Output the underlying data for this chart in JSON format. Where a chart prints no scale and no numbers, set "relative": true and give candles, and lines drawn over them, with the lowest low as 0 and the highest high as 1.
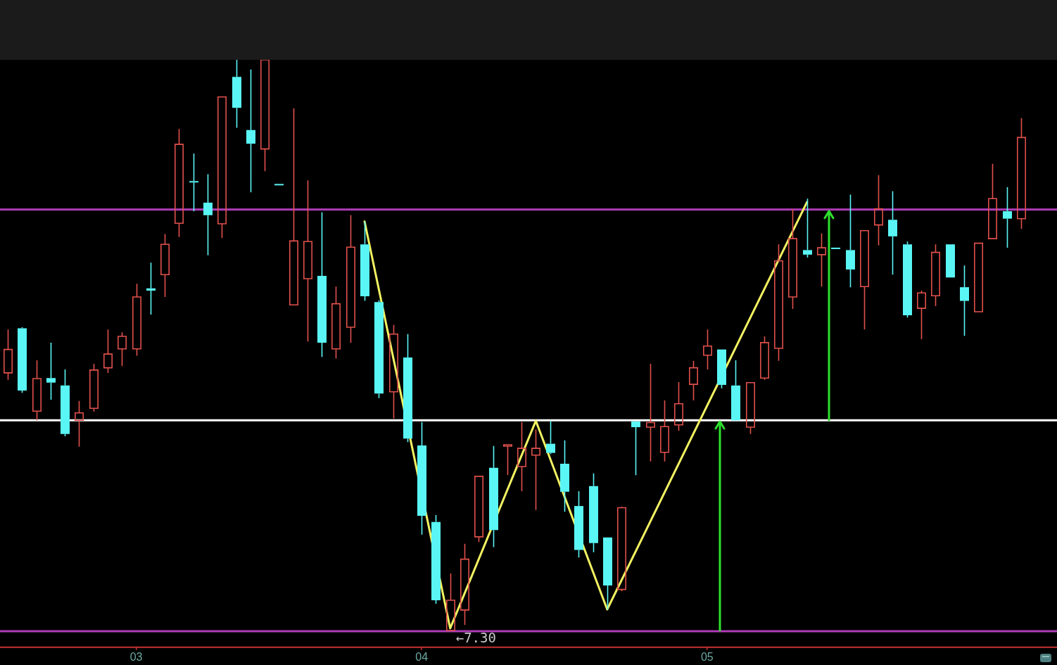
{
  "chart_data": {
    "type": "candlestick",
    "relative": true,
    "categories": [
      null,
      null,
      null,
      null,
      null,
      null,
      null,
      null,
      null,
      "03",
      null,
      null,
      null,
      null,
      null,
      null,
      null,
      null,
      null,
      null,
      null,
      null,
      null,
      null,
      null,
      null,
      null,
      null,
      null,
      "04",
      null,
      null,
      null,
      null,
      null,
      null,
      null,
      null,
      null,
      null,
      null,
      null,
      null,
      null,
      null,
      null,
      null,
      null,
      null,
      "05",
      null,
      null,
      null,
      null,
      null,
      null,
      null,
      null,
      null,
      null,
      null,
      null,
      null,
      null,
      null,
      null,
      null,
      null,
      null,
      null,
      null,
      null
    ],
    "ohlc": [
      [
        0.452,
        0.528,
        0.44,
        0.493
      ],
      [
        0.53,
        0.532,
        0.417,
        0.421
      ],
      [
        0.385,
        0.474,
        0.369,
        0.442
      ],
      [
        0.443,
        0.505,
        0.405,
        0.435
      ],
      [
        0.43,
        0.458,
        0.341,
        0.345
      ],
      [
        0.369,
        0.403,
        0.323,
        0.382
      ],
      [
        0.39,
        0.468,
        0.384,
        0.457
      ],
      [
        0.461,
        0.528,
        0.452,
        0.485
      ],
      [
        0.494,
        0.523,
        0.464,
        0.516
      ],
      [
        0.494,
        0.608,
        0.482,
        0.585
      ],
      [
        0.6,
        0.645,
        0.554,
        0.596
      ],
      [
        0.624,
        0.695,
        0.585,
        0.677
      ],
      [
        0.714,
        0.879,
        0.69,
        0.852
      ],
      [
        0.787,
        0.836,
        0.735,
        0.786
      ],
      [
        0.75,
        0.8,
        0.658,
        0.728
      ],
      [
        0.713,
        0.935,
        0.688,
        0.935
      ],
      [
        0.97,
        1,
        0.881,
        0.916
      ],
      [
        0.877,
        0.983,
        0.768,
        0.853
      ],
      [
        0.844,
        1,
        0.805,
        1
      ],
      [
        0.782,
        0.782,
        0.781,
        0.781
      ],
      [
        0.571,
        0.915,
        0.57,
        0.683
      ],
      [
        0.617,
        0.789,
        0.507,
        0.682
      ],
      [
        0.622,
        0.733,
        0.48,
        0.505
      ],
      [
        0.494,
        0.603,
        0.477,
        0.573
      ],
      [
        0.532,
        0.728,
        0.505,
        0.672
      ],
      [
        0.677,
        0.717,
        0.578,
        0.586
      ],
      [
        0.576,
        0.579,
        0.408,
        0.416
      ],
      [
        0.419,
        0.536,
        0.372,
        0.52
      ],
      [
        0.479,
        0.52,
        0.331,
        0.337
      ],
      [
        0.325,
        0.366,
        0.169,
        0.202
      ],
      [
        0.191,
        0.203,
        0.048,
        0.054
      ],
      [
        0.001,
        0.101,
        0,
        0.054
      ],
      [
        0.037,
        0.153,
        0.011,
        0.126
      ],
      [
        0.165,
        0.271,
        0.156,
        0.271
      ],
      [
        0.286,
        0.324,
        0.147,
        0.177
      ],
      [
        0.325,
        0.325,
        0.273,
        0.325
      ],
      [
        0.288,
        0.366,
        0.245,
        0.32
      ],
      [
        0.308,
        0.353,
        0.212,
        0.32
      ],
      [
        0.328,
        0.368,
        0.31,
        0.312
      ],
      [
        0.293,
        0.334,
        0.209,
        0.244
      ],
      [
        0.219,
        0.245,
        0.129,
        0.142
      ],
      [
        0.254,
        0.276,
        0.138,
        0.154
      ],
      [
        0.164,
        0.164,
        0.038,
        0.08
      ],
      [
        0.073,
        0.218,
        0.07,
        0.216
      ],
      [
        0.367,
        0.367,
        0.273,
        0.357
      ],
      [
        0.357,
        0.468,
        0.297,
        0.365
      ],
      [
        0.313,
        0.404,
        0.297,
        0.358
      ],
      [
        0.361,
        0.436,
        0.351,
        0.398
      ],
      [
        0.432,
        0.473,
        0.404,
        0.461
      ],
      [
        0.483,
        0.528,
        0.458,
        0.499
      ],
      [
        0.493,
        0.493,
        0.425,
        0.431
      ],
      [
        0.43,
        0.474,
        0.368,
        0.369
      ],
      [
        0.357,
        0.436,
        0.345,
        0.435
      ],
      [
        0.443,
        0.516,
        0.44,
        0.505
      ],
      [
        0.495,
        0.677,
        0.473,
        0.648
      ],
      [
        0.585,
        0.739,
        0.564,
        0.687
      ],
      [
        0.667,
        0.757,
        0.654,
        0.659
      ],
      [
        0.659,
        0.696,
        0.603,
        0.671
      ],
      [
        0.671,
        0.671,
        0.669,
        0.669
      ],
      [
        0.667,
        0.764,
        0.602,
        0.633
      ],
      [
        0.603,
        0.701,
        0.528,
        0.701
      ],
      [
        0.711,
        0.798,
        0.675,
        0.739
      ],
      [
        0.72,
        0.77,
        0.624,
        0.691
      ],
      [
        0.677,
        0.682,
        0.549,
        0.553
      ],
      [
        0.565,
        0.596,
        0.511,
        0.592
      ],
      [
        0.587,
        0.677,
        0.569,
        0.663
      ],
      [
        0.677,
        0.677,
        0.619,
        0.619
      ],
      [
        0.602,
        0.64,
        0.517,
        0.578
      ],
      [
        0.559,
        0.679,
        0.559,
        0.679
      ],
      [
        0.687,
        0.818,
        0.687,
        0.757
      ],
      [
        0.735,
        0.777,
        0.671,
        0.722
      ],
      [
        0.722,
        0.898,
        0.704,
        0.864
      ]
    ],
    "colors": [
      "#e0504c",
      "#5af5f5",
      "#e0504c",
      "#5af5f5",
      "#5af5f5",
      "#e0504c",
      "#e0504c",
      "#e0504c",
      "#e0504c",
      "#e0504c",
      "#5af5f5",
      "#e0504c",
      "#e0504c",
      "#5af5f5",
      "#5af5f5",
      "#e0504c",
      "#5af5f5",
      "#5af5f5",
      "#e0504c",
      "#5af5f5",
      "#e0504c",
      "#e0504c",
      "#5af5f5",
      "#e0504c",
      "#e0504c",
      "#5af5f5",
      "#5af5f5",
      "#e0504c",
      "#5af5f5",
      "#5af5f5",
      "#5af5f5",
      "#e0504c",
      "#e0504c",
      "#e0504c",
      "#5af5f5",
      "#e0504c",
      "#e0504c",
      "#e0504c",
      "#5af5f5",
      "#5af5f5",
      "#5af5f5",
      "#5af5f5",
      "#5af5f5",
      "#e0504c",
      "#5af5f5",
      "#e0504c",
      "#e0504c",
      "#e0504c",
      "#e0504c",
      "#e0504c",
      "#5af5f5",
      "#5af5f5",
      "#e0504c",
      "#e0504c",
      "#e0504c",
      "#e0504c",
      "#5af5f5",
      "#e0504c",
      "#5af5f5",
      "#5af5f5",
      "#e0504c",
      "#e0504c",
      "#5af5f5",
      "#5af5f5",
      "#e0504c",
      "#e0504c",
      "#5af5f5",
      "#5af5f5",
      "#e0504c",
      "#e0504c",
      "#5af5f5",
      "#e0504c"
    ],
    "series": [
      {
        "type": "line",
        "color": "#f2f262",
        "values": [
          null,
          null,
          null,
          null,
          null,
          null,
          null,
          null,
          null,
          null,
          null,
          null,
          null,
          null,
          null,
          null,
          null,
          null,
          null,
          null,
          null,
          null,
          null,
          null,
          null,
          0.717,
          null,
          null,
          null,
          null,
          null,
          0.005,
          null,
          null,
          null,
          null,
          null,
          0.368,
          null,
          null,
          null,
          null,
          0.038,
          null,
          null,
          null,
          null,
          null,
          null,
          null,
          null,
          null,
          null,
          null,
          null,
          null,
          0.751,
          null,
          null,
          null,
          null,
          null,
          null,
          null,
          null,
          null,
          null,
          null,
          null,
          null,
          null,
          null
        ]
      }
    ],
    "ref_lines": [
      {
        "axis": "y",
        "value": 0.738,
        "color": "#b03cb8"
      },
      {
        "axis": "y",
        "value": 0.369,
        "color": "#ffffff"
      },
      {
        "axis": "y",
        "value": 0,
        "color": "#b03cb8"
      }
    ],
    "annotations": [
      {
        "text": "←7.30",
        "y": 0
      }
    ]
  }
}
